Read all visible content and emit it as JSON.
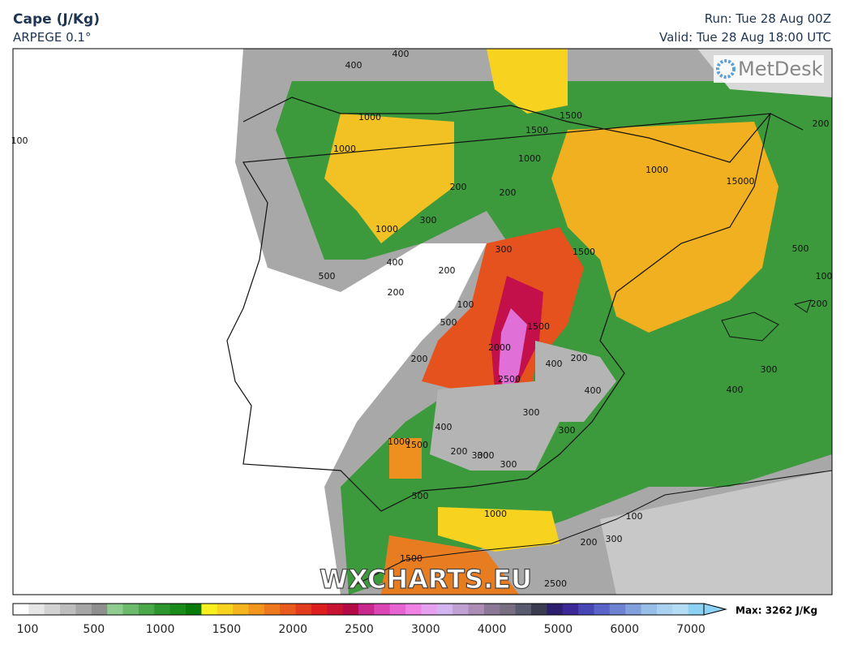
{
  "header": {
    "title": "Cape (J/Kg)",
    "model": "ARPEGE 0.1°",
    "run": "Run: Tue 28 Aug 00Z",
    "valid": "Valid: Tue 28 Aug 18:00 UTC"
  },
  "map": {
    "brand": "MetDesk",
    "watermark": "WXCHARTS.EU",
    "contour_labels": [
      "400",
      "400",
      "1000",
      "1000",
      "1500",
      "1500",
      "1000",
      "1000",
      "15000",
      "200",
      "200",
      "300",
      "1000",
      "400",
      "500",
      "200",
      "200",
      "300",
      "1500",
      "500",
      "100",
      "500",
      "1500",
      "2000",
      "200",
      "400",
      "200",
      "2500",
      "300",
      "400",
      "300",
      "300",
      "400",
      "300",
      "1000",
      "1500",
      "200",
      "300",
      "300",
      "500",
      "1000",
      "100",
      "200",
      "300",
      "1500",
      "2500",
      "200",
      "100",
      "200",
      "100",
      "400"
    ]
  },
  "colorbar": {
    "ticks": [
      100,
      500,
      1000,
      1500,
      2000,
      2500,
      3000,
      4000,
      5000,
      6000,
      7000
    ],
    "max_label": "Max: 3262 J/Kg"
  }
}
